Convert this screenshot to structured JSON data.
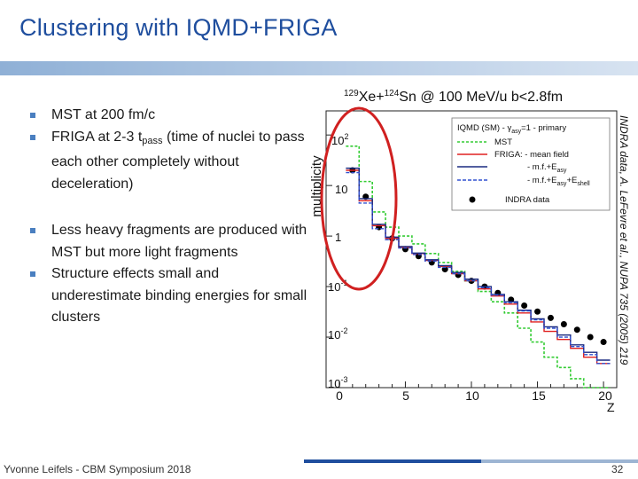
{
  "slide": {
    "title": "Clustering with IQMD+FRIGA",
    "footer_text": "Yvonne Leifels - CBM Symposium 2018",
    "page_number": "32"
  },
  "bullets": {
    "b1": "MST at 200 fm/c",
    "b2_pre": "FRIGA at 2-3 t",
    "b2_sub": "pass",
    "b2_post": " (time of nuclei to pass each other completely without deceleration)",
    "b3": "Less heavy fragments are produced with MST but more light fragments",
    "b4": "Structure effects small and underestimate binding energies for small clusters"
  },
  "plot": {
    "reaction_a": "129",
    "reaction_b": "Xe+",
    "reaction_c": "124",
    "reaction_d": "Sn @ 100 MeV/u b<2.8fm",
    "side_note": "INDRA data, A. LeFevre et al., NUPA 735 (2005) 219",
    "ylabel": "multiplicity",
    "xlabel": "Z",
    "legend": {
      "header_pre": "IQMD (SM) - γ",
      "header_sub": "asy",
      "header_post": "=1 - primary",
      "mst": "MST",
      "friga_mean": "FRIGA: - mean field",
      "mf_easy_pre": "- m.f.+E",
      "mf_easy_sub": "asy",
      "mf_eshell_pre": "- m.f.+E",
      "mf_eshell_sub1": "asy",
      "mf_eshell_mid": "+E",
      "mf_eshell_sub2": "shell",
      "indra": "INDRA data"
    },
    "yticks": {
      "t100_base": "10",
      "t100_exp": "2",
      "t10": "10",
      "t1": "1",
      "t01_base": "10",
      "t01_exp": "-1",
      "t001_base": "10",
      "t001_exp": "-2",
      "t0001_base": "10",
      "t0001_exp": "-3"
    },
    "xticks": [
      "0",
      "5",
      "10",
      "15",
      "20"
    ]
  },
  "chart_data": {
    "type": "line",
    "title": "129Xe+124Sn @ 100 MeV/u b<2.8fm",
    "xlabel": "Z",
    "ylabel": "multiplicity",
    "xlim": [
      -1,
      21
    ],
    "ylim": [
      0.001,
      300
    ],
    "yscale": "log",
    "x": [
      1,
      2,
      3,
      4,
      5,
      6,
      7,
      8,
      9,
      10,
      11,
      12,
      13,
      14,
      15,
      16,
      17,
      18,
      19,
      20
    ],
    "series": [
      {
        "name": "INDRA data",
        "values": [
          20,
          6,
          1.5,
          0.9,
          0.55,
          0.4,
          0.3,
          0.22,
          0.17,
          0.13,
          0.1,
          0.075,
          0.055,
          0.042,
          0.032,
          0.024,
          0.018,
          0.014,
          0.01,
          0.008
        ]
      },
      {
        "name": "MST",
        "values": [
          60,
          12,
          3,
          1.5,
          1.0,
          0.7,
          0.45,
          0.3,
          0.2,
          0.13,
          0.08,
          0.05,
          0.03,
          0.015,
          0.008,
          0.004,
          0.0025,
          0.0015,
          0.001,
          0.001
        ]
      },
      {
        "name": "FRIGA: - mean field",
        "values": [
          20,
          5,
          1.6,
          0.9,
          0.6,
          0.45,
          0.33,
          0.25,
          0.18,
          0.13,
          0.09,
          0.065,
          0.045,
          0.03,
          0.02,
          0.013,
          0.009,
          0.006,
          0.004,
          0.003
        ]
      },
      {
        "name": "- m.f.+Easy",
        "values": [
          22,
          5.5,
          1.7,
          0.95,
          0.62,
          0.46,
          0.34,
          0.26,
          0.19,
          0.14,
          0.1,
          0.07,
          0.05,
          0.034,
          0.023,
          0.016,
          0.011,
          0.007,
          0.005,
          0.0035
        ]
      },
      {
        "name": "- m.f.+Easy+Eshell",
        "values": [
          18,
          4.5,
          1.4,
          0.85,
          0.58,
          0.43,
          0.32,
          0.24,
          0.18,
          0.13,
          0.095,
          0.068,
          0.048,
          0.033,
          0.022,
          0.015,
          0.01,
          0.0065,
          0.0045,
          0.003
        ]
      }
    ],
    "colors": {
      "INDRA data": "#000000",
      "MST": "#33cc33",
      "FRIGA: - mean field": "#e02020",
      "- m.f.+Easy": "#1a2a80",
      "- m.f.+Easy+Eshell": "#3050d0",
      "highlight": "#d02020"
    },
    "legend_position": "top-right",
    "grid": false
  }
}
